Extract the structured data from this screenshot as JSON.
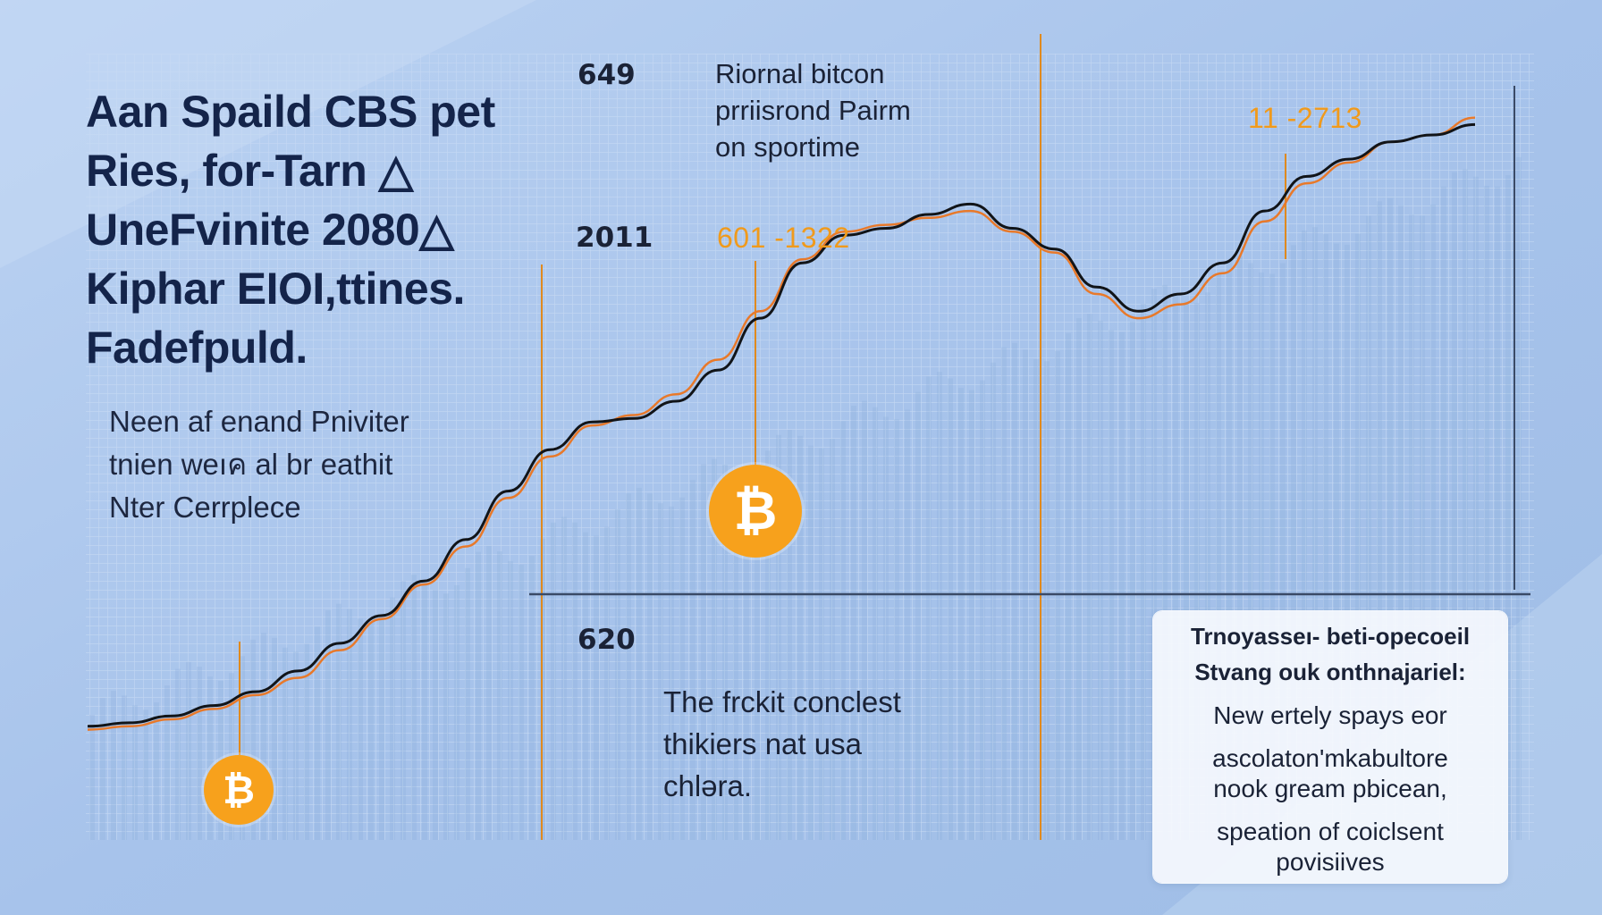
{
  "headline": {
    "lines": [
      "Aan Spaild CBS pet",
      "Ries, for-Tarn △",
      "UneFvinite 2080△",
      "Kiphar EIOI,ttines.",
      "Fadefpuld."
    ]
  },
  "subtext": {
    "lines": [
      "Neen af enand Pniviter",
      "tnien weıค al br eathit",
      "Nter Cerrplece"
    ]
  },
  "labels": {
    "top_year": "649",
    "mid_year": "2011",
    "low_year": "620"
  },
  "annotation_top": {
    "lines": [
      "Riornal bitcon",
      "prriisrond Pairm",
      "on sportime"
    ]
  },
  "orange_callouts": {
    "center": "601 -1322",
    "right": "11 -2713"
  },
  "mid_text": {
    "lines": [
      "The frckit conclest",
      "thikiers nat usa",
      "chləra."
    ]
  },
  "note_card": {
    "title_lines": [
      "Trnoyasseı- beti-opecoeil",
      "Stvang ouk onthnajariel:"
    ],
    "body_lines": [
      "New ertely spays eor",
      "ascolaton'mkabultore",
      "nook gream pbicean,"
    ],
    "body_lines_2": [
      "speation of coiclsent",
      "povisiives"
    ]
  },
  "coins": {
    "symbol": "₿",
    "icon_name": "bitcoin-icon"
  },
  "colors": {
    "price_line": "#111418",
    "trend_line": "#e8792a",
    "accent": "#f09a1c",
    "coin": "#f7a11c"
  },
  "chart_data": {
    "type": "line",
    "title": "",
    "xlabel": "",
    "ylabel": "",
    "grid": true,
    "series": [
      {
        "values": [
          6,
          7,
          9,
          12,
          16,
          22,
          30,
          38,
          48,
          60,
          74,
          86,
          94,
          95,
          100,
          109,
          124,
          140,
          148,
          150,
          154,
          157,
          150,
          144,
          133,
          126,
          131,
          140,
          155,
          165,
          170,
          175,
          177,
          180
        ]
      },
      {
        "values": [
          5,
          6,
          8,
          11,
          15,
          20,
          28,
          37,
          47,
          58,
          72,
          84,
          93,
          96,
          102,
          112,
          126,
          141,
          149,
          151,
          153,
          155,
          149,
          143,
          131,
          124,
          128,
          137,
          152,
          163,
          169,
          175,
          177,
          182
        ]
      }
    ]
  }
}
